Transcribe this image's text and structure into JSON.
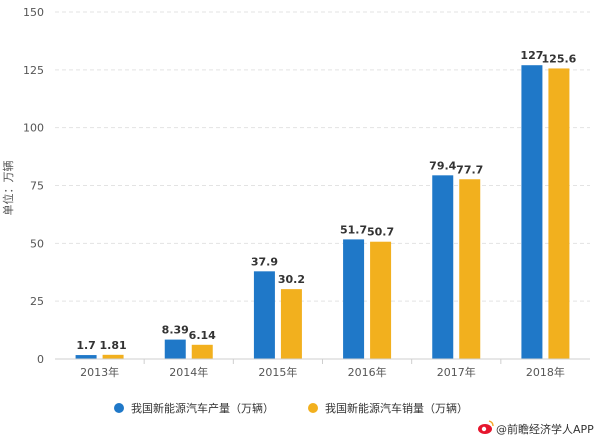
{
  "chart_data": {
    "type": "bar",
    "categories": [
      "2013年",
      "2014年",
      "2015年",
      "2016年",
      "2017年",
      "2018年"
    ],
    "series": [
      {
        "name": "我国新能源汽车产量（万辆）",
        "color": "#1f78c8",
        "values": [
          1.7,
          8.39,
          37.9,
          51.7,
          79.4,
          127
        ]
      },
      {
        "name": "我国新能源汽车销量（万辆）",
        "color": "#f2b01e",
        "values": [
          1.81,
          6.14,
          30.2,
          50.7,
          77.7,
          125.6
        ]
      }
    ],
    "ylabel": "单位：万辆",
    "ylim": [
      0,
      150
    ],
    "yticks": [
      0,
      25,
      50,
      75,
      100,
      125,
      150
    ],
    "grid": true,
    "legend_position": "bottom"
  },
  "footer": {
    "icon": "weibo-icon",
    "text": "@前瞻经济学人APP"
  }
}
